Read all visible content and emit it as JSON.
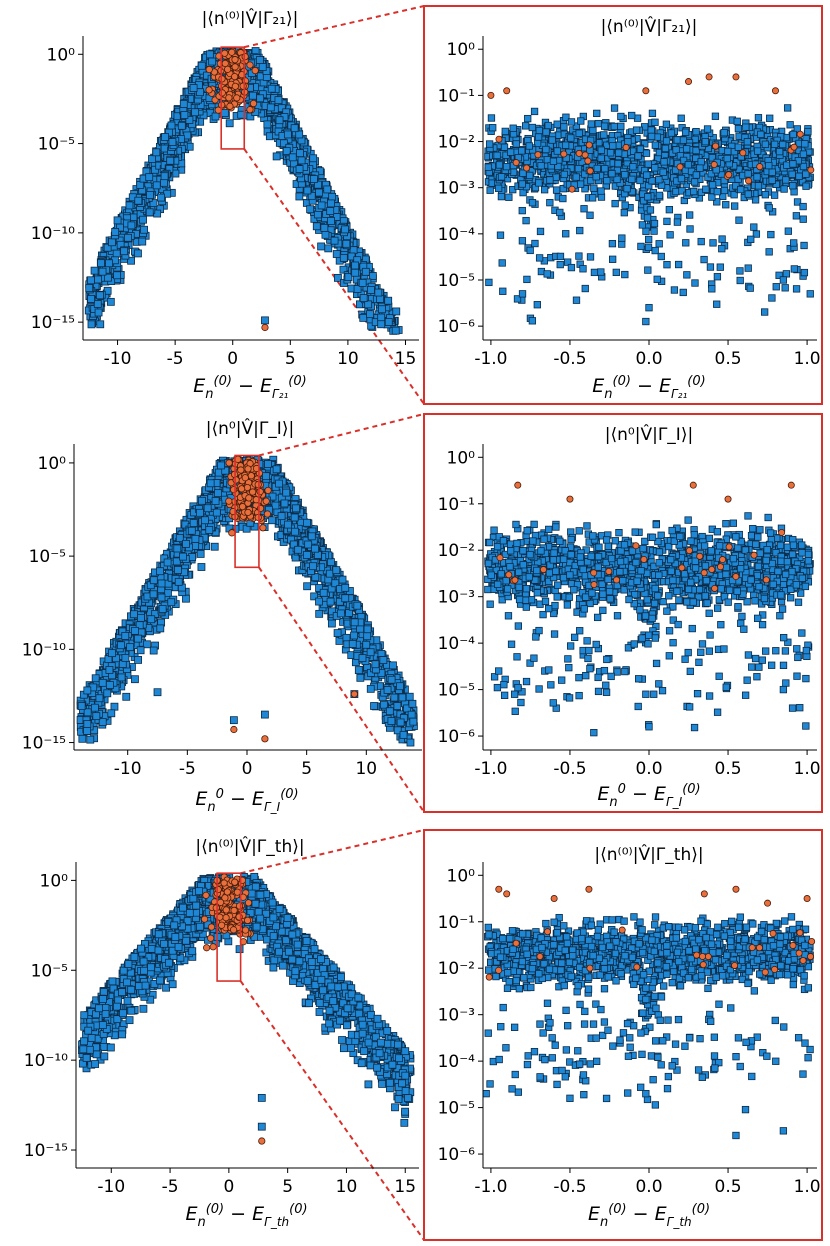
{
  "figure": "chart",
  "chart_data": [
    {
      "id": "p1-full",
      "type": "scatter",
      "title": "|⟨n⁽⁰⁾|V̂|Γ₂₁⟩|",
      "xlabel": "E_n^(0) − E_Γ21^(0)",
      "xlabel_main": "E",
      "xlabel_sub1": "n",
      "xlabel_sup1": "(0)",
      "xlabel_mid": " − E",
      "xlabel_sub2": "Γ₂₁",
      "xlabel_sup2": "(0)",
      "xlim": [
        -13,
        16
      ],
      "ylim_log10": [
        -16,
        0.8
      ],
      "yscale": "log",
      "xticks": [
        -10,
        -5,
        0,
        5,
        10,
        15
      ],
      "xtick_labels": [
        "-10",
        "-5",
        "0",
        "5",
        "10",
        "15"
      ],
      "yticks_log10": [
        0,
        -5,
        -10,
        -15
      ],
      "ytick_labels": [
        "10⁰",
        "10⁻⁵",
        "10⁻¹⁰",
        "10⁻¹⁵"
      ],
      "envelope": {
        "center": 0,
        "peak_log10": 0,
        "slope_log10_per_unit": -1.25,
        "spread": 13
      },
      "series": [
        {
          "name": "blue squares",
          "color": "#1e88d6",
          "marker": "square",
          "points": [
            [
              -12.3,
              -13.7
            ],
            [
              2.8,
              -14.9
            ],
            [
              -10,
              -9.3
            ],
            [
              -8.2,
              -8.2
            ],
            [
              12,
              -13.2
            ],
            [
              14.2,
              -14.4
            ],
            [
              13.5,
              -13.8
            ]
          ]
        },
        {
          "name": "orange circles",
          "color": "#e9703c",
          "marker": "circle",
          "points": [
            [
              2.8,
              -15.3
            ],
            [
              -1.2,
              -0.1
            ],
            [
              0.2,
              -0.3
            ],
            [
              1.5,
              -0.6
            ]
          ]
        }
      ],
      "zoom_box": {
        "x": [
          -1,
          1
        ],
        "y_log10": [
          -5.3,
          0.4
        ]
      }
    },
    {
      "id": "p1-zoom",
      "type": "scatter",
      "title": "|⟨n⁽⁰⁾|V̂|Γ₂₁⟩|",
      "xlabel": "E_n^(0) − E_Γ21^(0)",
      "xlabel_main": "E",
      "xlabel_sub1": "n",
      "xlabel_sup1": "(0)",
      "xlabel_mid": " − E",
      "xlabel_sub2": "Γ₂₁",
      "xlabel_sup2": "(0)",
      "xlim": [
        -1.05,
        1.05
      ],
      "ylim_log10": [
        -6.3,
        0.2
      ],
      "yscale": "log",
      "xticks": [
        -1.0,
        -0.5,
        0.0,
        0.5,
        1.0
      ],
      "xtick_labels": [
        "-1.0",
        "-0.5",
        "0.0",
        "0.5",
        "1.0"
      ],
      "yticks_log10": [
        0,
        -1,
        -2,
        -3,
        -4,
        -5,
        -6
      ],
      "ytick_labels": [
        "10⁰",
        "10⁻¹",
        "10⁻²",
        "10⁻³",
        "10⁻⁴",
        "10⁻⁵",
        "10⁻⁶"
      ],
      "band": {
        "center_log10": -2.4,
        "half_width": 1.0
      },
      "series": [
        {
          "name": "blue squares",
          "color": "#1e88d6",
          "marker": "square",
          "points": [
            [
              -0.8,
              -5.3
            ],
            [
              -0.02,
              -5.9
            ],
            [
              0.0,
              -5.6
            ],
            [
              0.85,
              -5.0
            ],
            [
              1.02,
              -5.3
            ],
            [
              -0.37,
              -4.5
            ]
          ]
        },
        {
          "name": "orange circles",
          "color": "#e9703c",
          "marker": "circle",
          "points": [
            [
              -1.0,
              -1.0
            ],
            [
              -0.9,
              -0.9
            ],
            [
              0.25,
              -0.7
            ],
            [
              0.38,
              -0.6
            ],
            [
              0.55,
              -0.6
            ],
            [
              0.8,
              -0.9
            ],
            [
              -0.02,
              -0.9
            ]
          ]
        }
      ]
    },
    {
      "id": "p2-full",
      "type": "scatter",
      "title": "|⟨n⁰|V̂|Γ_I⟩|",
      "xlabel": "E_n^0 − E_ΓI^(0)",
      "xlabel_main": "E",
      "xlabel_sub1": "n",
      "xlabel_sup1": "0",
      "xlabel_mid": " − E",
      "xlabel_sub2": "Γ_I",
      "xlabel_sup2": "(0)",
      "xlim": [
        -14.5,
        14.5
      ],
      "ylim_log10": [
        -15.4,
        0.8
      ],
      "yscale": "log",
      "xticks": [
        -10,
        -5,
        0,
        5,
        10
      ],
      "xtick_labels": [
        "-10",
        "-5",
        "0",
        "5",
        "10"
      ],
      "yticks_log10": [
        0,
        -5,
        -10,
        -15
      ],
      "ytick_labels": [
        "10⁰",
        "10⁻⁵",
        "10⁻¹⁰",
        "10⁻¹⁵"
      ],
      "envelope": {
        "center": 0,
        "peak_log10": 0,
        "slope_log10_per_unit": -1.1,
        "spread": 13
      },
      "series": [
        {
          "name": "blue squares",
          "color": "#1e88d6",
          "marker": "square",
          "points": [
            [
              -13.8,
              -14.8
            ],
            [
              -7.5,
              -12.3
            ],
            [
              -1.1,
              -13.8
            ],
            [
              1.5,
              -13.5
            ],
            [
              9,
              -12.4
            ],
            [
              13.7,
              -15
            ]
          ]
        },
        {
          "name": "orange circles",
          "color": "#e9703c",
          "marker": "circle",
          "points": [
            [
              -1.1,
              -14.3
            ],
            [
              1.5,
              -14.8
            ],
            [
              9,
              -12.4
            ],
            [
              -1.5,
              0
            ],
            [
              0.8,
              -0.3
            ]
          ]
        }
      ],
      "zoom_box": {
        "x": [
          -1,
          1
        ],
        "y_log10": [
          -5.6,
          0.4
        ]
      }
    },
    {
      "id": "p2-zoom",
      "type": "scatter",
      "title": "|⟨n⁰|V̂|Γ_I⟩|",
      "xlabel": "E_n^0 − E_ΓI^(0)",
      "xlabel_main": "E",
      "xlabel_sub1": "n",
      "xlabel_sup1": "0",
      "xlabel_mid": " − E",
      "xlabel_sub2": "Γ_I",
      "xlabel_sup2": "(0)",
      "xlim": [
        -1.05,
        1.05
      ],
      "ylim_log10": [
        -6.3,
        0.2
      ],
      "yscale": "log",
      "xticks": [
        -1.0,
        -0.5,
        0.0,
        0.5,
        1.0
      ],
      "xtick_labels": [
        "-1.0",
        "-0.5",
        "0.0",
        "0.5",
        "1.0"
      ],
      "yticks_log10": [
        0,
        -1,
        -2,
        -3,
        -4,
        -5,
        -6
      ],
      "ytick_labels": [
        "10⁰",
        "10⁻¹",
        "10⁻²",
        "10⁻³",
        "10⁻⁴",
        "10⁻⁵",
        "10⁻⁶"
      ],
      "band": {
        "center_log10": -2.4,
        "half_width": 1.0
      },
      "series": [
        {
          "name": "blue squares",
          "color": "#1e88d6",
          "marker": "square",
          "points": [
            [
              0.0,
              -5.8
            ],
            [
              -0.02,
              -5.1
            ],
            [
              0.03,
              -5.1
            ],
            [
              -0.85,
              -5.1
            ],
            [
              0.85,
              -5.0
            ],
            [
              -0.4,
              -4.7
            ]
          ]
        },
        {
          "name": "orange circles",
          "color": "#e9703c",
          "marker": "circle",
          "points": [
            [
              -0.83,
              -0.6
            ],
            [
              0.28,
              -0.6
            ],
            [
              0.9,
              -0.6
            ],
            [
              -0.5,
              -0.9
            ],
            [
              0.5,
              -0.9
            ]
          ]
        }
      ]
    },
    {
      "id": "p3-full",
      "type": "scatter",
      "title": "|⟨n⁽⁰⁾|V̂|Γ_th⟩|",
      "xlabel": "E_n^(0) − E_Γth^(0)",
      "xlabel_main": "E",
      "xlabel_sub1": "n",
      "xlabel_sup1": "(0)",
      "xlabel_mid": " − E",
      "xlabel_sub2": "Γ_th",
      "xlabel_sup2": "(0)",
      "xlim": [
        -13,
        16
      ],
      "ylim_log10": [
        -16,
        0.8
      ],
      "yscale": "log",
      "xticks": [
        -10,
        -5,
        0,
        5,
        10,
        15
      ],
      "xtick_labels": [
        "-10",
        "-5",
        "0",
        "5",
        "10",
        "15"
      ],
      "yticks_log10": [
        0,
        -5,
        -10,
        -15
      ],
      "ytick_labels": [
        "10⁰",
        "10⁻⁵",
        "10⁻¹⁰",
        "10⁻¹⁵"
      ],
      "envelope": {
        "center": 0,
        "peak_log10": 0,
        "slope_log10_per_unit": -0.75,
        "spread": 15
      },
      "series": [
        {
          "name": "blue squares",
          "color": "#1e88d6",
          "marker": "square",
          "points": [
            [
              -12.3,
              -7.5
            ],
            [
              2.8,
              -12.1
            ],
            [
              2.8,
              -13.7
            ],
            [
              15,
              -9.5
            ],
            [
              11.5,
              -9.5
            ]
          ]
        },
        {
          "name": "orange circles",
          "color": "#e9703c",
          "marker": "circle",
          "points": [
            [
              2.8,
              -14.5
            ],
            [
              -1.0,
              0
            ],
            [
              0.5,
              -0.1
            ]
          ]
        }
      ],
      "zoom_box": {
        "x": [
          -1,
          1
        ],
        "y_log10": [
          -5.6,
          0.4
        ]
      }
    },
    {
      "id": "p3-zoom",
      "type": "scatter",
      "title": "|⟨n⁽⁰⁾|V̂|Γ_th⟩|",
      "xlabel": "E_n^(0) − E_Γth^(0)",
      "xlabel_main": "E",
      "xlabel_sub1": "n",
      "xlabel_sup1": "(0)",
      "xlabel_mid": " − E",
      "xlabel_sub2": "Γ_th",
      "xlabel_sup2": "(0)",
      "xlim": [
        -1.05,
        1.05
      ],
      "ylim_log10": [
        -6.3,
        0.2
      ],
      "yscale": "log",
      "xticks": [
        -1.0,
        -0.5,
        0.0,
        0.5,
        1.0
      ],
      "xtick_labels": [
        "-1.0",
        "-0.5",
        "0.0",
        "0.5",
        "1.0"
      ],
      "yticks_log10": [
        0,
        -1,
        -2,
        -3,
        -4,
        -5,
        -6
      ],
      "ytick_labels": [
        "10⁰",
        "10⁻¹",
        "10⁻²",
        "10⁻³",
        "10⁻⁴",
        "10⁻⁵",
        "10⁻⁶"
      ],
      "band": {
        "center_log10": -1.7,
        "half_width": 0.8
      },
      "series": [
        {
          "name": "blue squares",
          "color": "#1e88d6",
          "marker": "square",
          "points": [
            [
              -1.03,
              -4.7
            ],
            [
              -0.5,
              -4.8
            ],
            [
              -0.02,
              -4.7
            ],
            [
              0.55,
              -5.6
            ],
            [
              0.85,
              -5.5
            ],
            [
              -0.55,
              -4.2
            ]
          ]
        },
        {
          "name": "orange circles",
          "color": "#e9703c",
          "marker": "circle",
          "points": [
            [
              -0.95,
              -0.3
            ],
            [
              -0.9,
              -0.4
            ],
            [
              -0.6,
              -0.5
            ],
            [
              -0.38,
              -0.3
            ],
            [
              0.35,
              -0.4
            ],
            [
              0.55,
              -0.3
            ],
            [
              0.75,
              -0.6
            ],
            [
              1.0,
              -0.5
            ]
          ]
        }
      ]
    }
  ]
}
